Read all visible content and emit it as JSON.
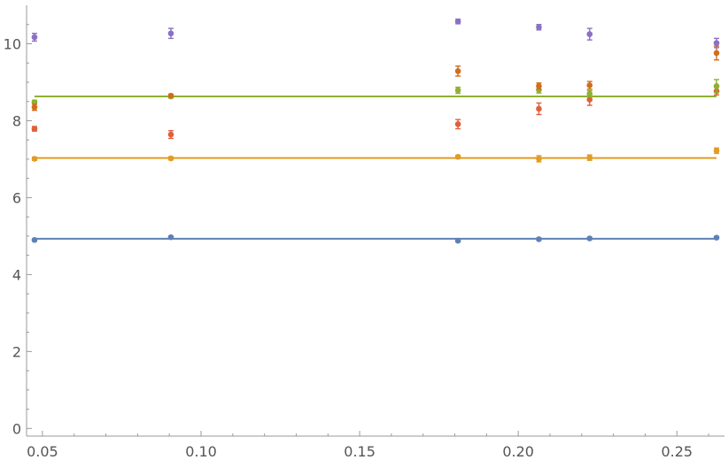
{
  "chart_data": {
    "type": "scatter",
    "title": "",
    "xlabel": "",
    "ylabel": "",
    "xlim": [
      0.045,
      0.265
    ],
    "ylim": [
      -0.2,
      11.0
    ],
    "grid": false,
    "x_ticks": [
      0.05,
      0.1,
      0.15,
      0.2,
      0.25
    ],
    "x_tick_labels": [
      "0.05",
      "0.10",
      "0.15",
      "0.20",
      "0.25"
    ],
    "y_ticks": [
      0,
      2,
      4,
      6,
      8,
      10
    ],
    "y_tick_labels": [
      "0",
      "2",
      "4",
      "6",
      "8",
      "10"
    ],
    "x": [
      0.0475,
      0.0905,
      0.181,
      0.2065,
      0.2225,
      0.2625
    ],
    "series": [
      {
        "color": "#5E81B5",
        "values": [
          4.9,
          4.97,
          4.88,
          4.92,
          4.94,
          4.96
        ],
        "errors": [
          0.03,
          0.03,
          0.03,
          0.03,
          0.03,
          0.03
        ]
      },
      {
        "color": "#E19C24",
        "values": [
          7.01,
          7.02,
          7.06,
          7.01,
          7.04,
          7.22
        ],
        "errors": [
          0.04,
          0.04,
          0.04,
          0.08,
          0.07,
          0.07
        ]
      },
      {
        "color": "#E0603A",
        "values": [
          7.79,
          7.64,
          7.91,
          8.31,
          8.55,
          8.77
        ],
        "errors": [
          0.06,
          0.1,
          0.12,
          0.15,
          0.15,
          0.1
        ]
      },
      {
        "color": "#8FB032",
        "values": [
          8.48,
          8.63,
          8.79,
          8.8,
          8.7,
          8.9
        ],
        "errors": [
          0.05,
          0.04,
          0.08,
          0.08,
          0.08,
          0.17
        ]
      },
      {
        "color": "#D06E1B",
        "values": [
          8.35,
          8.65,
          9.29,
          8.9,
          8.92,
          9.76
        ],
        "errors": [
          0.08,
          0.04,
          0.13,
          0.08,
          0.1,
          0.18
        ]
      },
      {
        "color": "#8B71C1",
        "values": [
          10.17,
          10.27,
          10.58,
          10.43,
          10.25,
          10.02
        ],
        "errors": [
          0.1,
          0.13,
          0.06,
          0.07,
          0.15,
          0.12
        ]
      }
    ],
    "fit_lines": [
      {
        "color": "#5E81B5",
        "y": 4.93
      },
      {
        "color": "#E19C24",
        "y": 7.03
      },
      {
        "color": "#8FB032",
        "y": 8.63
      }
    ]
  }
}
